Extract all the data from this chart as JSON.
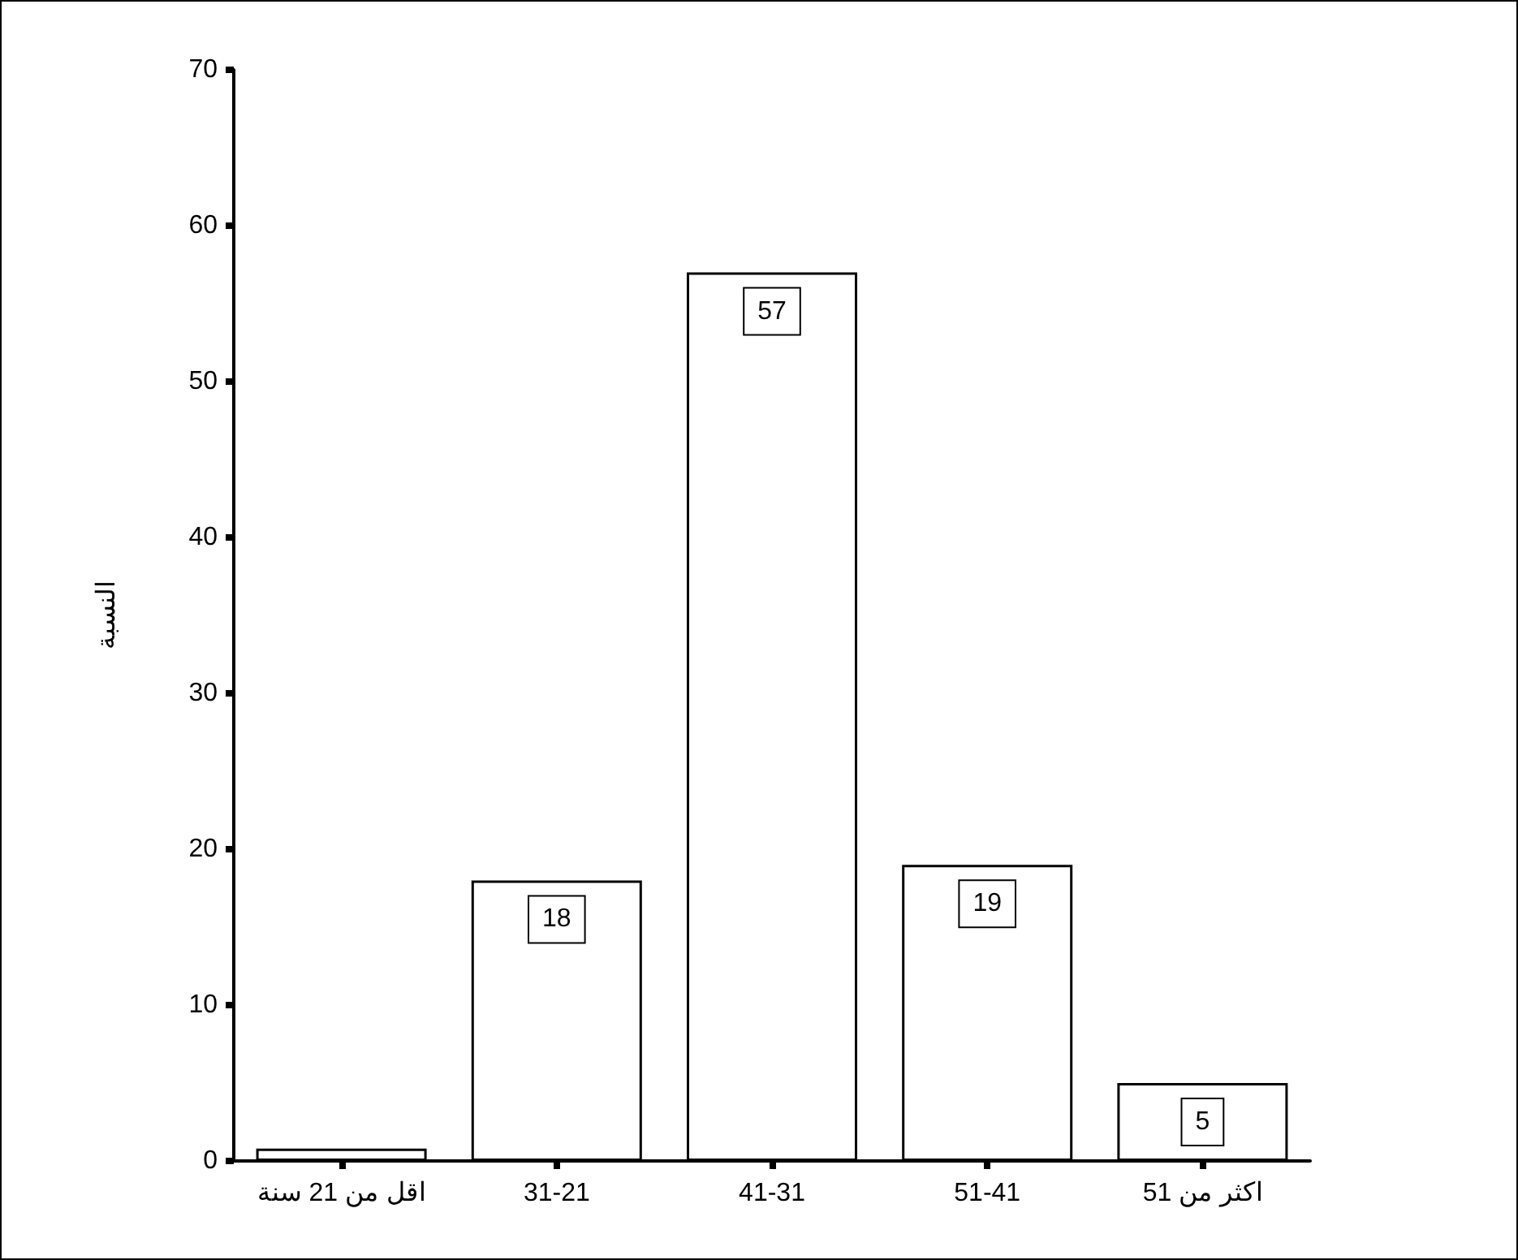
{
  "chart_data": {
    "type": "bar",
    "ylabel": "النسبة",
    "categories": [
      "اقل من 21 سنة",
      "31-21",
      "41-31",
      "51-41",
      "اكثر من 51"
    ],
    "values": [
      0.8,
      18,
      57,
      19,
      5
    ],
    "value_labels": [
      null,
      "18",
      "57",
      "19",
      "5"
    ],
    "color": "#ffffff",
    "ylim": [
      0,
      70
    ],
    "yticks": [
      0,
      10,
      20,
      30,
      40,
      50,
      60,
      70
    ],
    "grid": false
  }
}
